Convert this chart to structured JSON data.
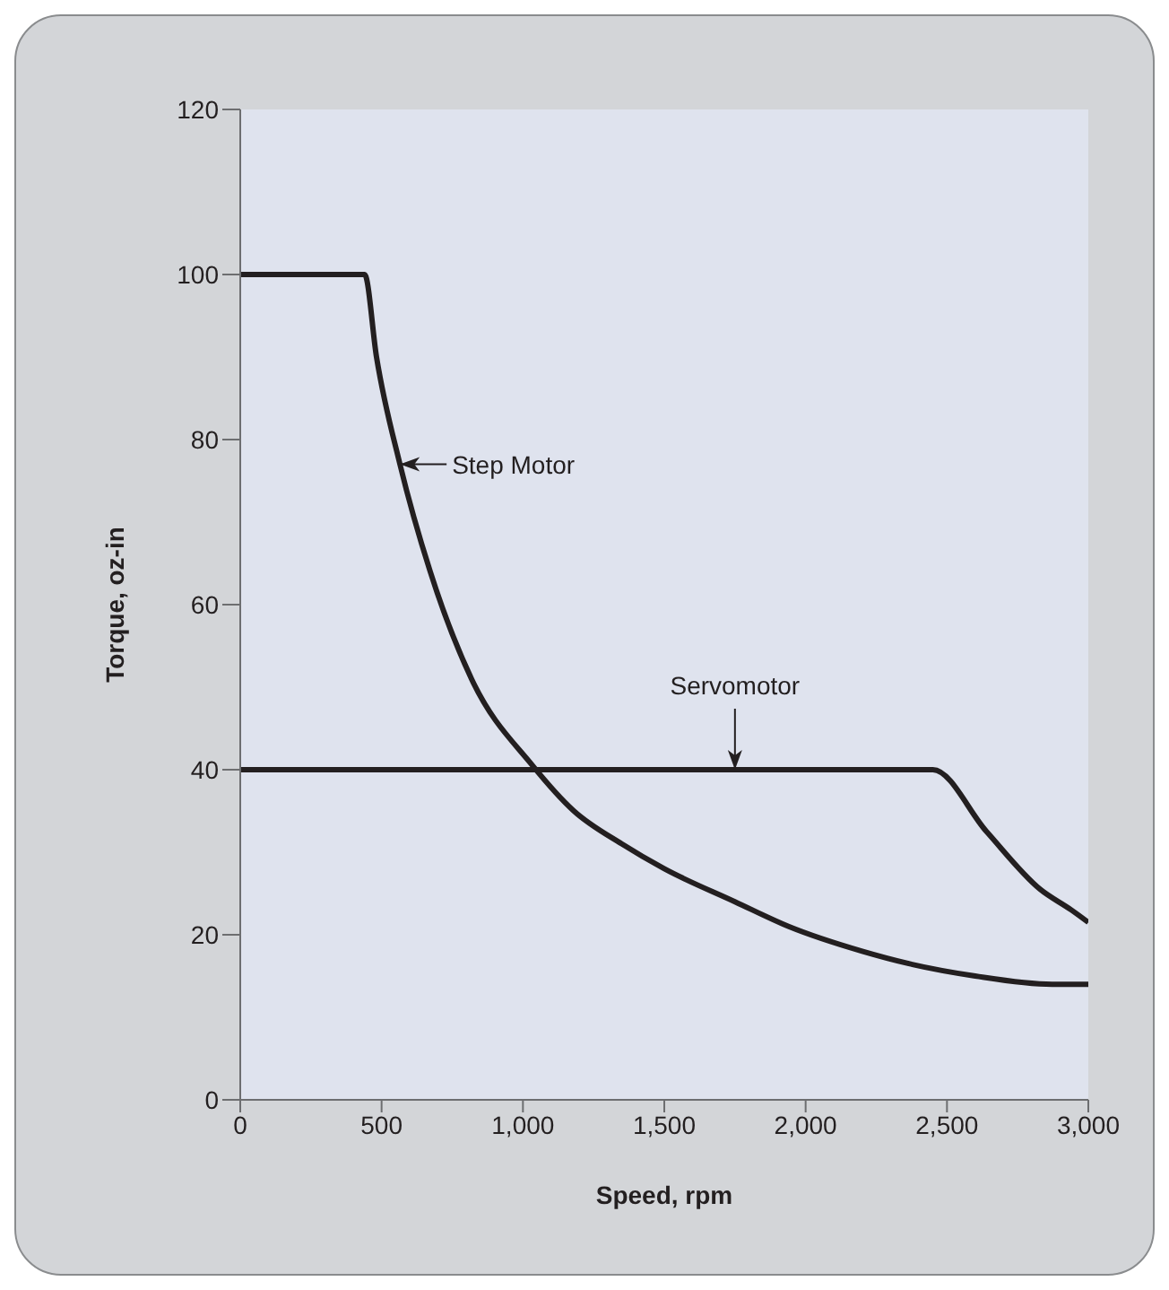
{
  "chart_data": {
    "type": "line",
    "xlabel": "Speed, rpm",
    "ylabel": "Torque, oz-in",
    "xlim": [
      0,
      3000
    ],
    "xticks": [
      0,
      500,
      {
        "value": 1000,
        "label": "1,000"
      },
      {
        "value": 1500,
        "label": "1,500"
      },
      {
        "value": 2000,
        "label": "2,000"
      },
      {
        "value": 2500,
        "label": "2,500"
      },
      {
        "value": 3000,
        "label": "3,000"
      }
    ],
    "ylim": [
      0,
      120
    ],
    "yticks": [
      0,
      20,
      40,
      60,
      80,
      100,
      120
    ],
    "grid": false,
    "legend": false,
    "marker": "none",
    "line_style": "solid",
    "series": [
      {
        "color": "#231f20",
        "x": [
          0,
          440,
          482,
          565,
          672,
          818,
          1034,
          1180,
          1350,
          1500,
          1750,
          1940,
          2200,
          2365,
          2600,
          2872,
          3000
        ],
        "values": [
          100,
          100,
          90,
          77,
          64,
          51,
          40.5,
          35,
          31,
          28,
          24,
          21,
          18,
          16.5,
          15,
          14,
          14
        ]
      },
      {
        "color": "#231f20",
        "x": [
          0,
          2450,
          2640,
          2830,
          2940,
          3000
        ],
        "values": [
          40,
          40,
          32.5,
          25.5,
          23,
          21.5
        ]
      }
    ],
    "annotations": [
      {
        "text": "Step Motor",
        "x": 565,
        "y": 77
      },
      {
        "text": "Servomotor",
        "x": 1750,
        "y": 40
      }
    ]
  }
}
